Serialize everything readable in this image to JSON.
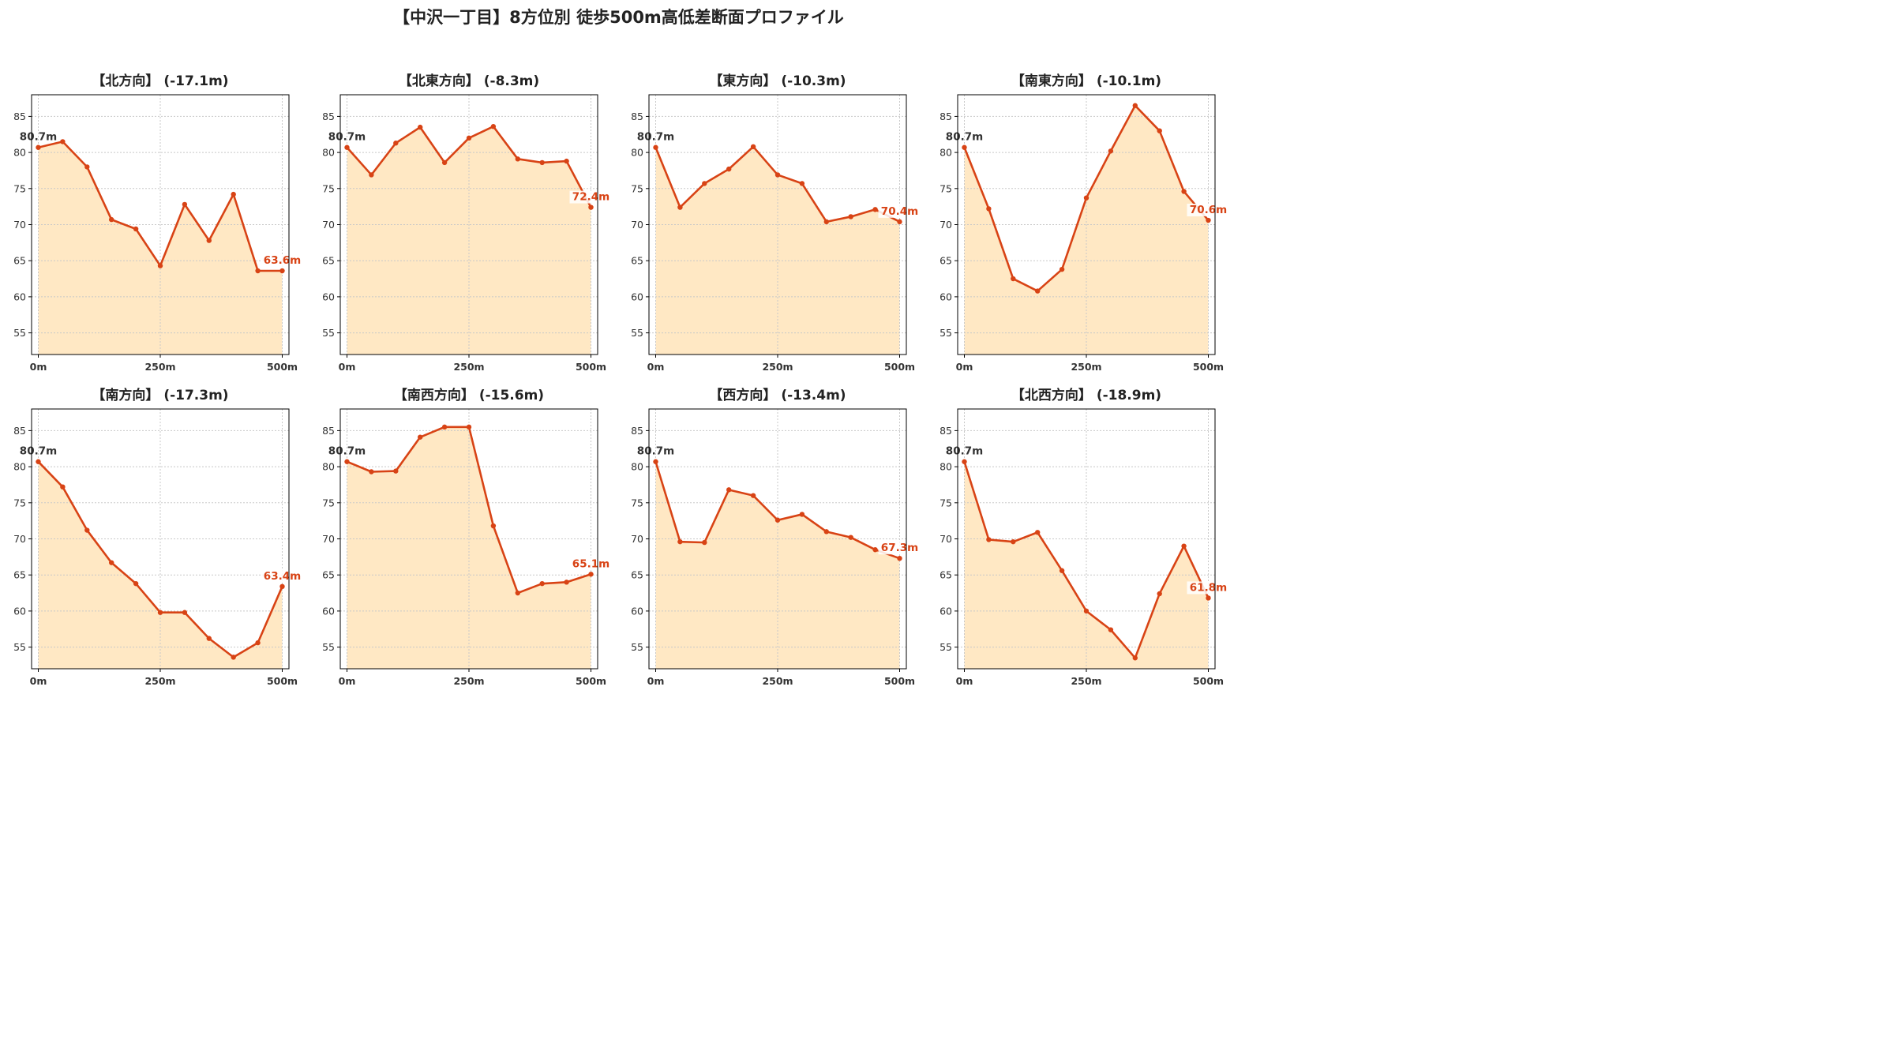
{
  "title": "【中沢一丁目】8方位別 徒歩500m高低差断面プロファイル",
  "colors": {
    "line": "#d84315",
    "fill": "#ffe8c4",
    "grid": "#c8c8c8",
    "start_label": "#333333",
    "end_label": "#d84315"
  },
  "chart_data": [
    {
      "type": "area",
      "title": "【北方向】 (-17.1m)",
      "x": [
        0,
        50,
        100,
        150,
        200,
        250,
        300,
        350,
        400,
        450,
        500
      ],
      "values": [
        80.7,
        81.5,
        78.0,
        70.7,
        69.4,
        64.3,
        72.8,
        67.8,
        74.2,
        63.6,
        63.6
      ],
      "start_label": "80.7m",
      "end_label": "63.6m",
      "ylim": [
        52,
        88
      ],
      "yticks": [
        "55",
        "60",
        "65",
        "70",
        "75",
        "80",
        "85"
      ],
      "xticks": [
        "0m",
        "250m",
        "500m"
      ],
      "grid": true
    },
    {
      "type": "area",
      "title": "【北東方向】 (-8.3m)",
      "x": [
        0,
        50,
        100,
        150,
        200,
        250,
        300,
        350,
        400,
        450,
        500
      ],
      "values": [
        80.7,
        76.9,
        81.3,
        83.5,
        78.6,
        82.0,
        83.6,
        79.1,
        78.6,
        78.8,
        72.4
      ],
      "start_label": "80.7m",
      "end_label": "72.4m",
      "ylim": [
        52,
        88
      ],
      "yticks": [
        "55",
        "60",
        "65",
        "70",
        "75",
        "80",
        "85"
      ],
      "xticks": [
        "0m",
        "250m",
        "500m"
      ],
      "grid": true
    },
    {
      "type": "area",
      "title": "【東方向】 (-10.3m)",
      "x": [
        0,
        50,
        100,
        150,
        200,
        250,
        300,
        350,
        400,
        450,
        500
      ],
      "values": [
        80.7,
        72.4,
        75.7,
        77.7,
        80.8,
        76.9,
        75.7,
        70.4,
        71.1,
        72.1,
        70.4
      ],
      "start_label": "80.7m",
      "end_label": "70.4m",
      "ylim": [
        52,
        88
      ],
      "yticks": [
        "55",
        "60",
        "65",
        "70",
        "75",
        "80",
        "85"
      ],
      "xticks": [
        "0m",
        "250m",
        "500m"
      ],
      "grid": true
    },
    {
      "type": "area",
      "title": "【南東方向】 (-10.1m)",
      "x": [
        0,
        50,
        100,
        150,
        200,
        250,
        300,
        350,
        400,
        450,
        500
      ],
      "values": [
        80.7,
        72.2,
        62.5,
        60.8,
        63.8,
        73.7,
        80.2,
        86.5,
        83.0,
        74.6,
        70.6
      ],
      "start_label": "80.7m",
      "end_label": "70.6m",
      "ylim": [
        52,
        88
      ],
      "yticks": [
        "55",
        "60",
        "65",
        "70",
        "75",
        "80",
        "85"
      ],
      "xticks": [
        "0m",
        "250m",
        "500m"
      ],
      "grid": true
    },
    {
      "type": "area",
      "title": "【南方向】 (-17.3m)",
      "x": [
        0,
        50,
        100,
        150,
        200,
        250,
        300,
        350,
        400,
        450,
        500
      ],
      "values": [
        80.7,
        77.2,
        71.2,
        66.7,
        63.8,
        59.8,
        59.8,
        56.2,
        53.6,
        55.6,
        63.4
      ],
      "start_label": "80.7m",
      "end_label": "63.4m",
      "ylim": [
        52,
        88
      ],
      "yticks": [
        "55",
        "60",
        "65",
        "70",
        "75",
        "80",
        "85"
      ],
      "xticks": [
        "0m",
        "250m",
        "500m"
      ],
      "grid": true
    },
    {
      "type": "area",
      "title": "【南西方向】 (-15.6m)",
      "x": [
        0,
        50,
        100,
        150,
        200,
        250,
        300,
        350,
        400,
        450,
        500
      ],
      "values": [
        80.7,
        79.3,
        79.4,
        84.1,
        85.5,
        85.5,
        71.8,
        62.5,
        63.8,
        64.0,
        65.1
      ],
      "start_label": "80.7m",
      "end_label": "65.1m",
      "ylim": [
        52,
        88
      ],
      "yticks": [
        "55",
        "60",
        "65",
        "70",
        "75",
        "80",
        "85"
      ],
      "xticks": [
        "0m",
        "250m",
        "500m"
      ],
      "grid": true
    },
    {
      "type": "area",
      "title": "【西方向】 (-13.4m)",
      "x": [
        0,
        50,
        100,
        150,
        200,
        250,
        300,
        350,
        400,
        450,
        500
      ],
      "values": [
        80.7,
        69.6,
        69.5,
        76.8,
        76.0,
        72.6,
        73.4,
        71.0,
        70.2,
        68.5,
        67.3
      ],
      "start_label": "80.7m",
      "end_label": "67.3m",
      "ylim": [
        52,
        88
      ],
      "yticks": [
        "55",
        "60",
        "65",
        "70",
        "75",
        "80",
        "85"
      ],
      "xticks": [
        "0m",
        "250m",
        "500m"
      ],
      "grid": true
    },
    {
      "type": "area",
      "title": "【北西方向】 (-18.9m)",
      "x": [
        0,
        50,
        100,
        150,
        200,
        250,
        300,
        350,
        400,
        450,
        500
      ],
      "values": [
        80.7,
        69.9,
        69.6,
        70.9,
        65.6,
        60.0,
        57.4,
        53.5,
        62.4,
        69.0,
        61.8
      ],
      "start_label": "80.7m",
      "end_label": "61.8m",
      "ylim": [
        52,
        88
      ],
      "yticks": [
        "55",
        "60",
        "65",
        "70",
        "75",
        "80",
        "85"
      ],
      "xticks": [
        "0m",
        "250m",
        "500m"
      ],
      "grid": true
    }
  ]
}
